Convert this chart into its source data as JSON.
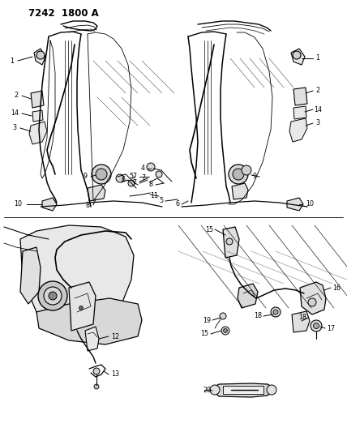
{
  "title": "7242  1800 A",
  "bg": "#ffffff",
  "lc": "#000000",
  "fig_width": 4.28,
  "fig_height": 5.33,
  "dpi": 100,
  "title_fontsize": 8.5,
  "label_fontsize": 5.8
}
